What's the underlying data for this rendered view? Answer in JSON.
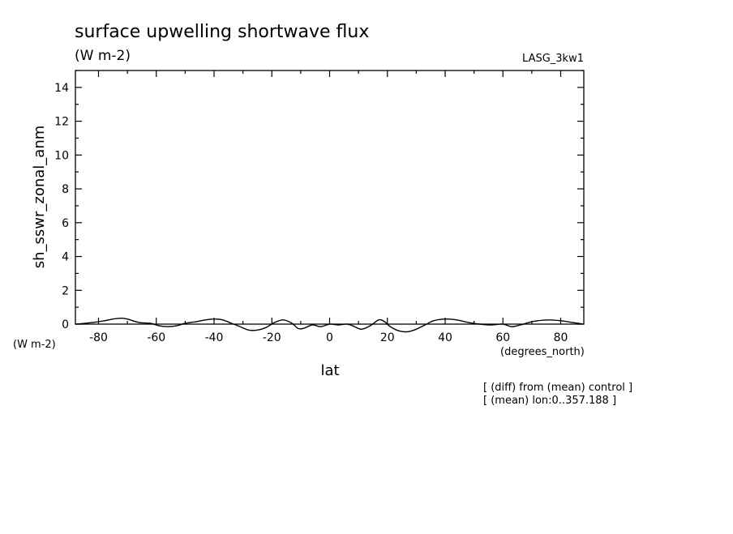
{
  "chart_data": {
    "type": "line",
    "title": "surface upwelling shortwave flux",
    "subtitle": "(W m-2)",
    "dataset_label": "LASG_3kw1",
    "xlabel": "lat",
    "x_unit": "(degrees_north)",
    "ylabel": "sh_sswr_zonal_anm",
    "y_unit": "(W m-2)",
    "notes": [
      "[ (diff) from (mean) control ]",
      "[ (mean) lon:0..357.188 ]"
    ],
    "xlim": [
      -88,
      88
    ],
    "ylim": [
      0,
      15
    ],
    "x_ticks": [
      -80,
      -60,
      -40,
      -20,
      0,
      20,
      40,
      60,
      80
    ],
    "x_tick_labels": [
      "-80",
      "-60",
      "-40",
      "-20",
      "0",
      "20",
      "40",
      "60",
      "80"
    ],
    "y_ticks": [
      0,
      2,
      4,
      6,
      8,
      10,
      12,
      14
    ],
    "y_tick_labels": [
      "0",
      "2",
      "4",
      "6",
      "8",
      "10",
      "12",
      "14"
    ],
    "x_minor_step": 10,
    "y_minor_step": 1,
    "grid": false,
    "series": [
      {
        "x": [
          -88,
          -82,
          -78,
          -75,
          -72,
          -70,
          -66,
          -62,
          -59,
          -56,
          -53,
          -50,
          -46,
          -43,
          -40,
          -37,
          -34,
          -31,
          -28,
          -25,
          -22,
          -19,
          -16,
          -13,
          -11,
          -9,
          -6,
          -3,
          0,
          3,
          6,
          8,
          11,
          14,
          17,
          19,
          21,
          24,
          27,
          30,
          33,
          36,
          40,
          44,
          48,
          52,
          56,
          60,
          63,
          66,
          69,
          72,
          76,
          80,
          84,
          88
        ],
        "y": [
          0,
          0.1,
          0.2,
          0.3,
          0.35,
          0.3,
          0.1,
          0.05,
          -0.1,
          -0.15,
          -0.1,
          0.05,
          0.15,
          0.25,
          0.3,
          0.25,
          0.05,
          -0.15,
          -0.35,
          -0.35,
          -0.2,
          0.1,
          0.25,
          0.05,
          -0.25,
          -0.25,
          -0.05,
          -0.15,
          0,
          -0.05,
          0,
          -0.1,
          -0.3,
          -0.1,
          0.25,
          0.15,
          -0.15,
          -0.4,
          -0.45,
          -0.3,
          -0.05,
          0.2,
          0.3,
          0.25,
          0.1,
          0,
          -0.05,
          0,
          -0.15,
          -0.05,
          0.1,
          0.2,
          0.25,
          0.2,
          0.1,
          0
        ]
      }
    ]
  }
}
